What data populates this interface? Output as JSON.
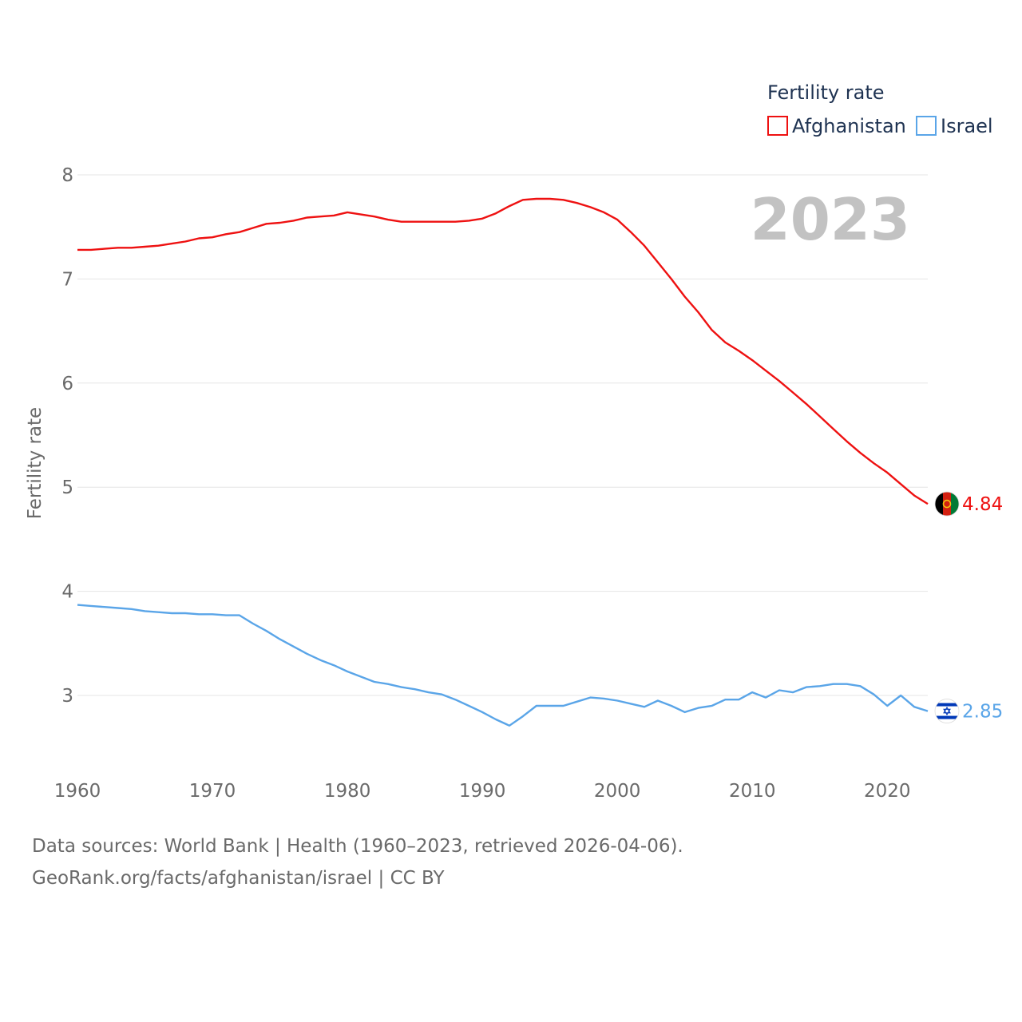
{
  "chart_data": {
    "type": "line",
    "title": "Fertility rate",
    "ylabel": "Fertility rate",
    "xlabel": "",
    "current_year": "2023",
    "xlim": [
      1960,
      2023
    ],
    "ylim": [
      2.3,
      8.2
    ],
    "x_ticks": [
      1960,
      1970,
      1980,
      1990,
      2000,
      2010,
      2020
    ],
    "y_ticks": [
      3,
      4,
      5,
      6,
      7,
      8
    ],
    "grid": true,
    "legend": "top-right",
    "x": [
      1960,
      1961,
      1962,
      1963,
      1964,
      1965,
      1966,
      1967,
      1968,
      1969,
      1970,
      1971,
      1972,
      1973,
      1974,
      1975,
      1976,
      1977,
      1978,
      1979,
      1980,
      1981,
      1982,
      1983,
      1984,
      1985,
      1986,
      1987,
      1988,
      1989,
      1990,
      1991,
      1992,
      1993,
      1994,
      1995,
      1996,
      1997,
      1998,
      1999,
      2000,
      2001,
      2002,
      2003,
      2004,
      2005,
      2006,
      2007,
      2008,
      2009,
      2010,
      2011,
      2012,
      2013,
      2014,
      2015,
      2016,
      2017,
      2018,
      2019,
      2020,
      2021,
      2022,
      2023
    ],
    "series": [
      {
        "name": "Afghanistan",
        "color": "#ee1111",
        "end_label": "4.84",
        "flag": "afghanistan-flag",
        "values": [
          7.28,
          7.28,
          7.29,
          7.3,
          7.3,
          7.31,
          7.32,
          7.34,
          7.36,
          7.39,
          7.4,
          7.43,
          7.45,
          7.49,
          7.53,
          7.54,
          7.56,
          7.59,
          7.6,
          7.61,
          7.64,
          7.62,
          7.6,
          7.57,
          7.55,
          7.55,
          7.55,
          7.55,
          7.55,
          7.56,
          7.58,
          7.63,
          7.7,
          7.76,
          7.77,
          7.77,
          7.76,
          7.73,
          7.69,
          7.64,
          7.57,
          7.45,
          7.32,
          7.16,
          7.0,
          6.83,
          6.68,
          6.51,
          6.39,
          6.31,
          6.22,
          6.12,
          6.02,
          5.91,
          5.8,
          5.68,
          5.56,
          5.44,
          5.33,
          5.23,
          5.14,
          5.03,
          4.92,
          4.84
        ]
      },
      {
        "name": "Israel",
        "color": "#5aa5e8",
        "end_label": "2.85",
        "flag": "israel-flag",
        "values": [
          3.87,
          3.86,
          3.85,
          3.84,
          3.83,
          3.81,
          3.8,
          3.79,
          3.79,
          3.78,
          3.78,
          3.77,
          3.77,
          3.69,
          3.62,
          3.54,
          3.47,
          3.4,
          3.34,
          3.29,
          3.23,
          3.18,
          3.13,
          3.11,
          3.08,
          3.06,
          3.03,
          3.01,
          2.96,
          2.9,
          2.84,
          2.77,
          2.71,
          2.8,
          2.9,
          2.9,
          2.9,
          2.94,
          2.98,
          2.97,
          2.95,
          2.92,
          2.89,
          2.95,
          2.9,
          2.84,
          2.88,
          2.9,
          2.96,
          2.96,
          3.03,
          2.98,
          3.05,
          3.03,
          3.08,
          3.09,
          3.11,
          3.11,
          3.09,
          3.01,
          2.9,
          3.0,
          2.89,
          2.85
        ]
      }
    ]
  },
  "footer": {
    "line1": "Data sources: World Bank | Health (1960–2023, retrieved 2026-04-06).",
    "line2": "GeoRank.org/facts/afghanistan/israel | CC BY"
  }
}
